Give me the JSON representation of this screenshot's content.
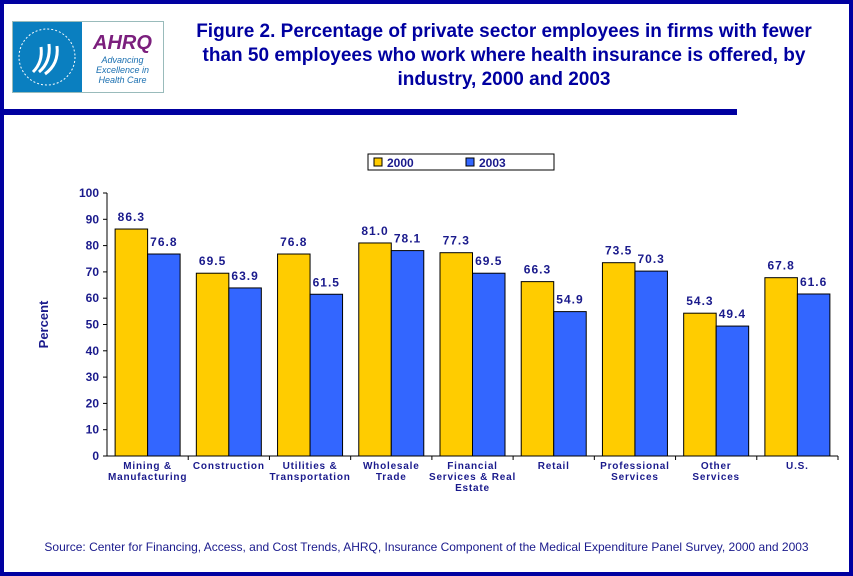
{
  "logo": {
    "org": "AHRQ",
    "tagline": "Advancing Excellence in Health Care"
  },
  "title": "Figure 2. Percentage of private sector employees in firms with fewer than 50 employees who work where health insurance is offered, by industry, 2000 and 2003",
  "source": "Source: Center for Financing, Access, and Cost Trends, AHRQ, Insurance Component of the Medical Expenditure Panel Survey, 2000 and 2003",
  "chart_data": {
    "type": "bar",
    "title": "Figure 2. Percentage of private sector employees in firms with fewer than 50 employees who work where health insurance is offered, by industry, 2000 and 2003",
    "xlabel": "",
    "ylabel": "Percent",
    "ylim": [
      0,
      100
    ],
    "yticks": [
      0,
      10,
      20,
      30,
      40,
      50,
      60,
      70,
      80,
      90,
      100
    ],
    "categories": [
      [
        "Mining &",
        "Manufacturing"
      ],
      [
        "Construction"
      ],
      [
        "Utilities &",
        "Transportation"
      ],
      [
        "Wholesale",
        "Trade"
      ],
      [
        "Financial",
        "Services & Real",
        "Estate"
      ],
      [
        "Retail"
      ],
      [
        "Professional",
        "Services"
      ],
      [
        "Other",
        "Services"
      ],
      [
        "U.S."
      ]
    ],
    "series": [
      {
        "name": "2000",
        "color": "#ffcc00",
        "values": [
          86.3,
          69.5,
          76.8,
          81.0,
          77.3,
          66.3,
          73.5,
          54.3,
          67.8
        ]
      },
      {
        "name": "2003",
        "color": "#3366ff",
        "values": [
          76.8,
          63.9,
          61.5,
          78.1,
          69.5,
          54.9,
          70.3,
          49.4,
          61.6
        ]
      }
    ],
    "legend": "top-center"
  }
}
